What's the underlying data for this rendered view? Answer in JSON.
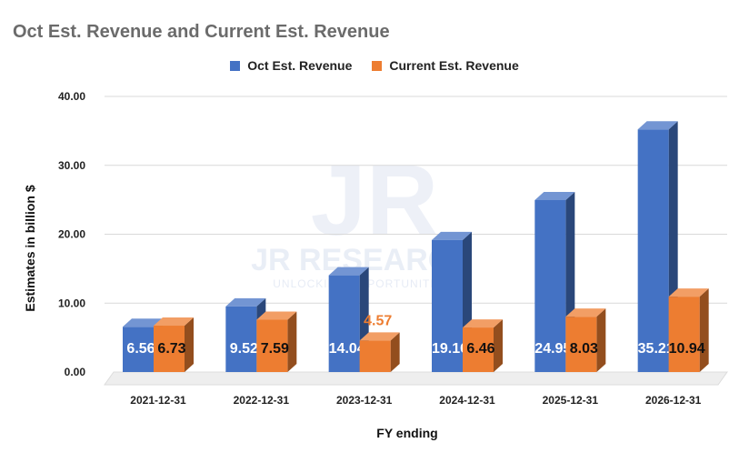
{
  "chart_data": {
    "type": "bar",
    "title": "Oct Est. Revenue and Current Est. Revenue",
    "xlabel": "FY ending",
    "ylabel": "Estimates in billion $",
    "ylim": [
      0,
      40
    ],
    "yticks": [
      "0.00",
      "10.00",
      "20.00",
      "30.00",
      "40.00"
    ],
    "grid": true,
    "legend_position": "top-center",
    "categories": [
      "2021-12-31",
      "2022-12-31",
      "2023-12-31",
      "2024-12-31",
      "2025-12-31",
      "2026-12-31"
    ],
    "series": [
      {
        "name": "Oct Est. Revenue",
        "color": "#4472c4",
        "label_color": "#4472c4",
        "values": [
          6.56,
          9.52,
          14.04,
          19.16,
          24.95,
          35.21
        ],
        "labels": [
          "6.56",
          "9.52",
          "14.04",
          "19.16",
          "24.95",
          "35.21"
        ]
      },
      {
        "name": "Current Est. Revenue",
        "color": "#ed7d31",
        "label_color": "#ed7d31",
        "values": [
          6.73,
          7.59,
          4.57,
          6.46,
          8.03,
          10.94
        ],
        "labels": [
          "6.73",
          "7.59",
          "4.57",
          "6.46",
          "8.03",
          "10.94"
        ]
      }
    ]
  },
  "watermark": {
    "logo": "JR",
    "name": "JR RESEARCH",
    "tagline": "UNLOCKING OPPORTUNITIES"
  }
}
